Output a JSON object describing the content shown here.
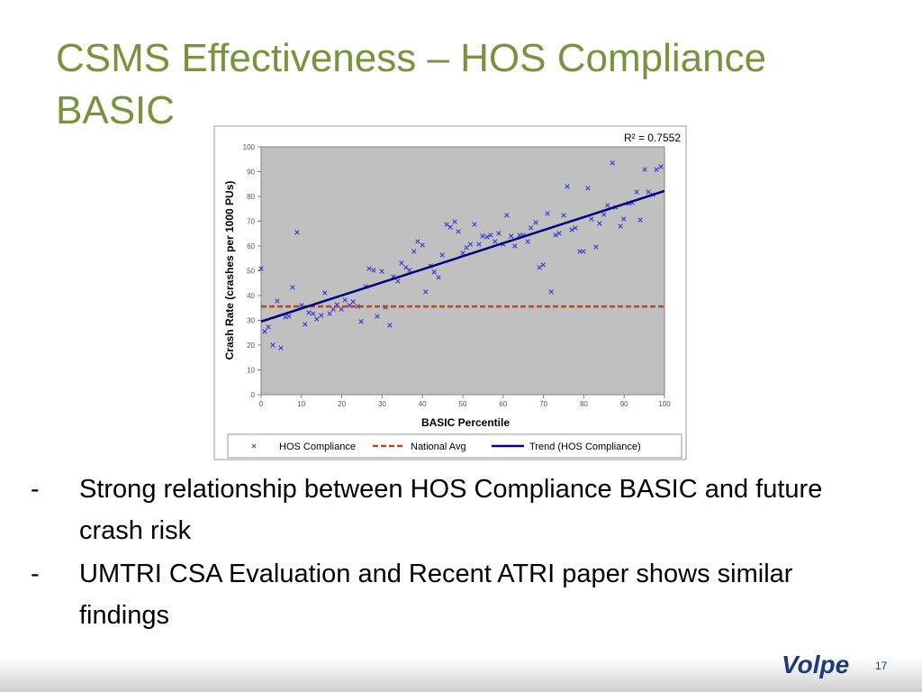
{
  "header": {
    "title_lines": [
      "CSMS Effectiveness – HOS Compliance",
      "BASIC"
    ]
  },
  "bullets": [
    {
      "marker": "-",
      "text": "Strong relationship between HOS Compliance BASIC and future crash risk"
    },
    {
      "marker": "-",
      "text": "UMTRI CSA Evaluation and Recent ATRI paper shows similar findings"
    }
  ],
  "footer": {
    "logo": "Volpe",
    "page_number": "17"
  },
  "chart_data": {
    "type": "scatter",
    "annotation": "R² = 0.7552",
    "x_label": "BASIC Percentile",
    "y_label": "Crash Rate (crashes per 1000 PUs)",
    "xlim": [
      0,
      100
    ],
    "xticks": [
      0,
      10,
      20,
      30,
      40,
      50,
      60,
      70,
      80,
      90,
      100
    ],
    "ylim": [
      0,
      100
    ],
    "yticks": [
      0,
      10,
      20,
      30,
      40,
      50,
      60,
      70,
      80,
      90,
      100
    ],
    "series": [
      {
        "name": "HOS Compliance",
        "type": "scatter",
        "color": "#3b3bd6",
        "x": [
          0,
          0.9,
          1.8,
          2.9,
          4,
          4.9,
          6,
          6.9,
          7.8,
          8.9,
          10,
          10.9,
          11.8,
          12.9,
          13.8,
          14.9,
          15.8,
          17,
          17.9,
          18.8,
          19.9,
          20.8,
          21.9,
          22.8,
          24,
          24.8,
          25.9,
          26.8,
          27.9,
          28.8,
          29.9,
          30.8,
          31.9,
          32.8,
          33.9,
          34.8,
          35.9,
          36.8,
          37.9,
          38.8,
          40,
          40.8,
          42,
          42.9,
          44,
          44.9,
          46,
          46.9,
          48,
          48.9,
          50,
          50.9,
          51.9,
          52.9,
          54,
          54.9,
          56,
          56.9,
          58,
          58.9,
          60,
          60.9,
          62,
          62.9,
          64.1,
          65,
          66.1,
          66.9,
          68.1,
          69,
          69.9,
          71,
          71.9,
          73,
          73.9,
          75,
          75.9,
          77,
          77.9,
          79,
          79.9,
          81,
          81.9,
          83,
          83.9,
          85,
          85.9,
          87.1,
          87.9,
          89.1,
          89.9,
          91.1,
          92,
          93.1,
          94,
          95.1,
          96,
          97.1,
          98,
          99.1
        ],
        "values": [
          50.9,
          25.5,
          27.3,
          20,
          37.8,
          18.9,
          31.3,
          31.6,
          43.3,
          65.5,
          36,
          28.4,
          33.1,
          32.7,
          30.5,
          32,
          41.1,
          32.7,
          34.5,
          36.4,
          34.5,
          38.2,
          36,
          37.5,
          35.6,
          29.5,
          43.6,
          50.9,
          50.2,
          31.6,
          49.8,
          35.3,
          28,
          47.6,
          45.8,
          53.1,
          51.3,
          50.2,
          57.8,
          61.8,
          60.4,
          41.5,
          52,
          49.5,
          47.3,
          56.4,
          68.7,
          67.6,
          69.8,
          65.8,
          57.1,
          59.3,
          60.7,
          68.7,
          60.7,
          64,
          63.6,
          64.4,
          61.8,
          65.1,
          60.7,
          72.4,
          64,
          60,
          64.4,
          64.4,
          61.8,
          67.3,
          69.5,
          51.3,
          52.4,
          73.1,
          41.5,
          64.4,
          65.1,
          72.4,
          84,
          66.5,
          67.3,
          57.8,
          57.8,
          83.3,
          70.9,
          59.6,
          69.1,
          72.7,
          76.4,
          93.5,
          75.6,
          68,
          70.9,
          77.1,
          77.5,
          81.8,
          70.5,
          90.9,
          81.8,
          80.7,
          90.9,
          92
        ]
      },
      {
        "name": "National Avg",
        "type": "line",
        "dashed": true,
        "color": "#c0441a",
        "x": [
          0,
          100
        ],
        "values": [
          35.6,
          35.6
        ]
      },
      {
        "name": "Trend (HOS Compliance)",
        "type": "line",
        "dashed": false,
        "color": "#000080",
        "x": [
          0,
          100
        ],
        "values": [
          29.5,
          82.2
        ]
      }
    ]
  }
}
